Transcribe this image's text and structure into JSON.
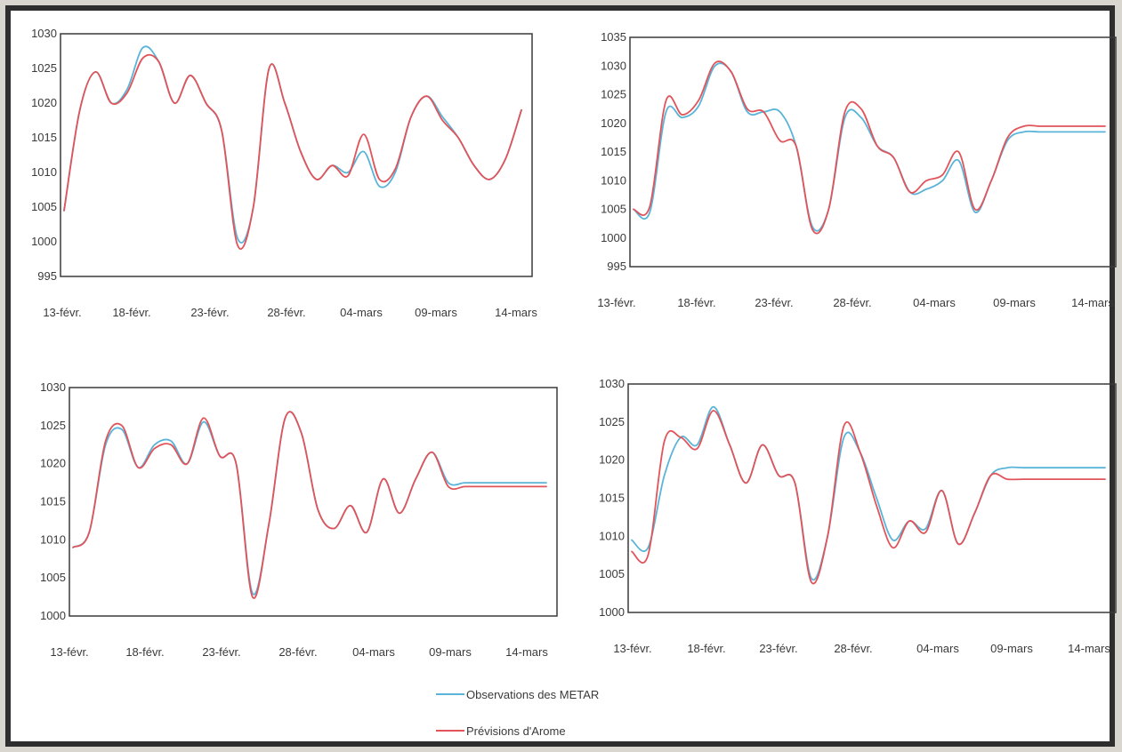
{
  "legend": {
    "observations": "Observations des METAR",
    "previsions": "Prévisions d'Arome"
  },
  "colors": {
    "observations": "#5ab4d8",
    "previsions": "#e0545a",
    "axis": "#3a3a3a"
  },
  "chart_data": [
    {
      "type": "line",
      "position": "top-left",
      "x_tick_labels": [
        "13-févr.",
        "18-févr.",
        "23-févr.",
        "28-févr.",
        "04-mars",
        "09-mars",
        "14-mars"
      ],
      "x_day_range": [
        0,
        29
      ],
      "ylim": [
        995,
        1030
      ],
      "y_ticks": [
        995,
        1000,
        1005,
        1010,
        1015,
        1020,
        1025,
        1030
      ],
      "grid": false,
      "series": [
        {
          "name": "Observations des METAR",
          "color": "#5ab4d8",
          "x": [
            0,
            1,
            2,
            3,
            4,
            5,
            6,
            7,
            8,
            9,
            10,
            11,
            12,
            13,
            14,
            15,
            16,
            17,
            18,
            19,
            20,
            21,
            22,
            23,
            24,
            25,
            26,
            27,
            28,
            29
          ],
          "y": [
            1004.5,
            1019,
            1024.5,
            1020,
            1022,
            1028,
            1026,
            1020,
            1024,
            1020,
            1016,
            1000.5,
            1005,
            1025,
            1020,
            1013,
            1009,
            1011,
            1010,
            1013,
            1008,
            1010,
            1018,
            1021,
            1018,
            1015,
            1011,
            1009,
            1012,
            1019
          ]
        },
        {
          "name": "Prévisions d'Arome",
          "color": "#e0545a",
          "x": [
            0,
            1,
            2,
            3,
            4,
            5,
            6,
            7,
            8,
            9,
            10,
            11,
            12,
            13,
            14,
            15,
            16,
            17,
            18,
            19,
            20,
            21,
            22,
            23,
            24,
            25,
            26,
            27,
            28,
            29
          ],
          "y": [
            1004.5,
            1019,
            1024.5,
            1020,
            1021.5,
            1026.5,
            1026,
            1020,
            1024,
            1020,
            1016,
            999.5,
            1005,
            1025,
            1020,
            1013,
            1009,
            1011,
            1009.5,
            1015.5,
            1009,
            1010.5,
            1018,
            1021,
            1017.5,
            1015,
            1011,
            1009,
            1012,
            1019
          ]
        }
      ]
    },
    {
      "type": "line",
      "position": "top-right",
      "x_tick_labels": [
        "13-févr.",
        "18-févr.",
        "23-févr.",
        "28-févr.",
        "04-mars",
        "09-mars",
        "14-mars"
      ],
      "x_day_range": [
        0,
        29
      ],
      "ylim": [
        995,
        1035
      ],
      "y_ticks": [
        995,
        1000,
        1005,
        1010,
        1015,
        1020,
        1025,
        1030,
        1035
      ],
      "grid": false,
      "series": [
        {
          "name": "Observations des METAR",
          "color": "#5ab4d8",
          "x": [
            0,
            1,
            2,
            3,
            4,
            5,
            6,
            7,
            8,
            9,
            10,
            11,
            12,
            13,
            14,
            15,
            16,
            17,
            18,
            19,
            20,
            21,
            22,
            23,
            24,
            25,
            26,
            27,
            28,
            29
          ],
          "y": [
            1005,
            1004.5,
            1022,
            1021,
            1023,
            1030,
            1029,
            1022,
            1022,
            1022,
            1016,
            1002,
            1005,
            1021,
            1021,
            1016,
            1014,
            1008,
            1008.5,
            1010,
            1013.5,
            1004.5,
            1010,
            1017,
            1018.5,
            1018.5,
            1018.5,
            1018.5,
            1018.5,
            1018.5
          ]
        },
        {
          "name": "Prévisions d'Arome",
          "color": "#e0545a",
          "x": [
            0,
            1,
            2,
            3,
            4,
            5,
            6,
            7,
            8,
            9,
            10,
            11,
            12,
            13,
            14,
            15,
            16,
            17,
            18,
            19,
            20,
            21,
            22,
            23,
            24,
            25,
            26,
            27,
            28,
            29
          ],
          "y": [
            1005,
            1005.5,
            1024,
            1021.5,
            1024,
            1030.5,
            1029,
            1022.5,
            1022,
            1017,
            1016,
            1001.5,
            1005,
            1022,
            1022.5,
            1016,
            1014,
            1008,
            1010,
            1011,
            1015,
            1005,
            1010,
            1017.5,
            1019.5,
            1019.5,
            1019.5,
            1019.5,
            1019.5,
            1019.5
          ]
        }
      ]
    },
    {
      "type": "line",
      "position": "bottom-left",
      "x_tick_labels": [
        "13-févr.",
        "18-févr.",
        "23-févr.",
        "28-févr.",
        "04-mars",
        "09-mars",
        "14-mars"
      ],
      "x_day_range": [
        0,
        29
      ],
      "ylim": [
        1000,
        1030
      ],
      "y_ticks": [
        1000,
        1005,
        1010,
        1015,
        1020,
        1025,
        1030
      ],
      "grid": false,
      "series": [
        {
          "name": "Observations des METAR",
          "color": "#5ab4d8",
          "x": [
            0,
            1,
            2,
            3,
            4,
            5,
            6,
            7,
            8,
            9,
            10,
            11,
            12,
            13,
            14,
            15,
            16,
            17,
            18,
            19,
            20,
            21,
            22,
            23,
            24,
            25,
            26,
            27,
            28,
            29
          ],
          "y": [
            1009,
            1011,
            1022.5,
            1024.5,
            1019.5,
            1022.5,
            1023,
            1020,
            1025.5,
            1021,
            1020,
            1003,
            1012,
            1026,
            1024,
            1014,
            1011.5,
            1014.5,
            1011,
            1018,
            1013.5,
            1018,
            1021.5,
            1017.5,
            1017.5,
            1017.5,
            1017.5,
            1017.5,
            1017.5,
            1017.5
          ]
        },
        {
          "name": "Prévisions d'Arome",
          "color": "#e0545a",
          "x": [
            0,
            1,
            2,
            3,
            4,
            5,
            6,
            7,
            8,
            9,
            10,
            11,
            12,
            13,
            14,
            15,
            16,
            17,
            18,
            19,
            20,
            21,
            22,
            23,
            24,
            25,
            26,
            27,
            28,
            29
          ],
          "y": [
            1009,
            1011,
            1023,
            1025,
            1019.5,
            1022,
            1022.5,
            1020,
            1026,
            1021,
            1020,
            1002.5,
            1012,
            1026,
            1024,
            1014,
            1011.5,
            1014.5,
            1011,
            1018,
            1013.5,
            1018,
            1021.5,
            1017,
            1017,
            1017,
            1017,
            1017,
            1017,
            1017
          ]
        }
      ]
    },
    {
      "type": "line",
      "position": "bottom-right",
      "x_tick_labels": [
        "13-févr.",
        "18-févr.",
        "23-févr.",
        "28-févr.",
        "04-mars",
        "09-mars",
        "14-mars"
      ],
      "x_day_range": [
        0,
        29
      ],
      "ylim": [
        1000,
        1030
      ],
      "y_ticks": [
        1000,
        1005,
        1010,
        1015,
        1020,
        1025,
        1030
      ],
      "grid": false,
      "series": [
        {
          "name": "Observations des METAR",
          "color": "#5ab4d8",
          "x": [
            0,
            1,
            2,
            3,
            4,
            5,
            6,
            7,
            8,
            9,
            10,
            11,
            12,
            13,
            14,
            15,
            16,
            17,
            18,
            19,
            20,
            21,
            22,
            23,
            24,
            25,
            26,
            27,
            28,
            29
          ],
          "y": [
            1009.5,
            1008.5,
            1018,
            1023,
            1022,
            1027,
            1022,
            1017,
            1022,
            1018,
            1017,
            1004.5,
            1010,
            1023,
            1021,
            1015,
            1009.5,
            1012,
            1011,
            1016,
            1009,
            1013,
            1018,
            1019,
            1019,
            1019,
            1019,
            1019,
            1019,
            1019
          ]
        },
        {
          "name": "Prévisions d'Arome",
          "color": "#e0545a",
          "x": [
            0,
            1,
            2,
            3,
            4,
            5,
            6,
            7,
            8,
            9,
            10,
            11,
            12,
            13,
            14,
            15,
            16,
            17,
            18,
            19,
            20,
            21,
            22,
            23,
            24,
            25,
            26,
            27,
            28,
            29
          ],
          "y": [
            1008,
            1007.5,
            1022.5,
            1023,
            1021.5,
            1026.5,
            1022,
            1017,
            1022,
            1018,
            1017,
            1004,
            1010,
            1024.5,
            1021,
            1014,
            1008.5,
            1012,
            1010.5,
            1016,
            1009,
            1013,
            1018,
            1017.5,
            1017.5,
            1017.5,
            1017.5,
            1017.5,
            1017.5,
            1017.5
          ]
        }
      ]
    }
  ]
}
